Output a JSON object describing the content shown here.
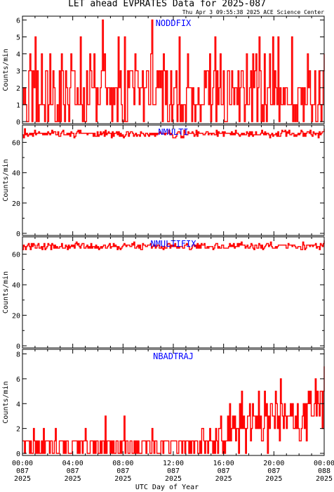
{
  "header": {
    "title": "LET ahead EVPRATES Data for 2025-087",
    "timestamp": "Thu Apr  3 09:55:38 2025 ACE Science Center"
  },
  "colors": {
    "series": "#ff0000",
    "panel_label": "#0000ff",
    "axis": "#000000"
  },
  "x_axis": {
    "label": "UTC Day of Year",
    "ticks": [
      {
        "time": "00:00",
        "doy": "087",
        "year": "2025"
      },
      {
        "time": "04:00",
        "doy": "087",
        "year": "2025"
      },
      {
        "time": "08:00",
        "doy": "087",
        "year": "2025"
      },
      {
        "time": "12:00",
        "doy": "087",
        "year": "2025"
      },
      {
        "time": "16:00",
        "doy": "087",
        "year": "2025"
      },
      {
        "time": "20:00",
        "doy": "087",
        "year": "2025"
      },
      {
        "time": "00:00",
        "doy": "088",
        "year": "2025"
      }
    ]
  },
  "chart_data": [
    {
      "type": "line",
      "label": "NODDFIX",
      "ylabel": "Counts/min",
      "ylim": [
        0,
        6.1
      ],
      "yticks": [
        0,
        1,
        2,
        3,
        4,
        5,
        6
      ],
      "x": {
        "start_hour": 0,
        "end_hour": 24,
        "step_min": 5
      },
      "values": [
        2,
        1,
        2,
        1,
        0,
        0,
        3,
        4,
        3,
        0,
        3,
        2,
        5,
        0,
        3,
        0,
        1,
        1,
        4,
        1,
        1,
        0,
        3,
        3,
        0,
        1,
        4,
        1,
        1,
        3,
        2,
        0,
        0,
        1,
        0,
        3,
        0,
        4,
        3,
        1,
        0,
        3,
        2,
        1,
        0,
        2,
        4,
        3,
        3,
        3,
        1,
        1,
        2,
        1,
        1,
        5,
        1,
        0,
        2,
        0,
        0,
        3,
        1,
        1,
        4,
        3,
        2,
        2,
        4,
        2,
        0,
        2,
        1,
        1,
        2,
        3,
        6,
        3,
        4,
        2,
        1,
        2,
        2,
        1,
        2,
        0,
        2,
        1,
        2,
        2,
        0,
        5,
        2,
        3,
        1,
        0,
        0,
        5,
        0,
        0,
        3,
        2,
        3,
        3,
        3,
        2,
        1,
        4,
        3,
        3,
        2,
        1,
        2,
        2,
        3,
        0,
        2,
        2,
        3,
        3,
        1,
        1,
        4,
        6,
        1,
        1,
        1,
        2,
        3,
        2,
        3,
        2,
        3,
        0,
        4,
        3,
        1,
        3,
        0,
        0,
        1,
        3,
        0,
        1,
        2,
        2,
        3,
        0,
        1,
        5,
        0,
        1,
        0,
        1,
        1,
        0,
        2,
        4,
        2,
        2,
        2,
        0,
        2,
        1,
        0,
        1,
        1,
        2,
        1,
        0,
        1,
        1,
        1,
        3,
        2,
        3,
        3,
        1,
        4,
        0,
        1,
        2,
        3,
        5,
        0,
        3,
        1,
        2,
        4,
        1,
        1,
        3,
        0,
        0,
        0,
        3,
        3,
        1,
        1,
        3,
        2,
        1,
        2,
        2,
        1,
        3,
        0,
        2,
        3,
        3,
        2,
        0,
        1,
        4,
        1,
        1,
        2,
        3,
        0,
        4,
        2,
        3,
        4,
        0,
        2,
        5,
        3,
        0,
        1,
        0,
        4,
        1,
        0,
        2,
        2,
        4,
        1,
        1,
        5,
        1,
        3,
        2,
        1,
        5,
        0,
        2,
        1,
        1,
        2,
        1,
        2,
        2,
        1,
        1,
        1,
        1,
        5,
        0,
        1,
        0,
        1,
        0,
        2,
        2,
        2,
        1,
        2,
        0,
        2,
        1,
        1,
        4,
        2,
        3,
        1,
        0,
        1,
        1,
        3,
        0,
        0,
        1,
        3,
        1,
        0,
        1,
        3,
        4
      ]
    },
    {
      "type": "line",
      "label": "NMULTI",
      "ylabel": "Counts/min",
      "ylim": [
        0,
        70
      ],
      "yticks": [
        0,
        20,
        40,
        60
      ],
      "x": {
        "start_hour": 0,
        "end_hour": 24,
        "step_min": 5
      },
      "values": [
        65,
        63,
        69,
        65,
        66,
        64,
        65,
        66,
        65,
        66,
        64,
        66,
        68,
        65,
        66,
        66,
        67,
        66,
        66,
        66,
        65,
        66,
        65,
        66,
        65,
        67,
        66,
        65,
        66,
        68,
        66,
        67,
        67,
        65,
        65,
        67,
        64,
        64,
        66,
        67,
        68,
        65,
        65,
        65,
        66,
        65,
        66,
        64,
        67,
        66,
        66,
        63,
        64,
        66,
        67,
        68,
        66,
        68,
        66,
        66,
        66,
        66,
        66,
        66,
        65,
        66,
        66,
        66,
        66,
        66,
        64,
        66,
        64,
        64,
        67,
        64,
        65,
        67,
        65,
        66,
        67,
        64,
        68,
        65,
        66,
        67,
        66,
        66,
        63,
        67,
        64,
        66,
        66,
        67,
        65,
        67,
        64,
        66,
        64,
        65,
        63,
        64,
        65,
        67,
        67,
        64,
        66,
        67,
        67,
        66,
        64,
        65,
        66,
        64,
        65,
        65,
        64,
        67,
        66,
        66,
        65,
        64,
        66,
        66,
        65,
        64,
        66,
        65,
        66,
        65,
        66,
        64,
        66,
        65,
        66,
        66,
        67,
        66,
        66,
        66,
        66,
        65,
        66,
        66,
        66,
        68,
        65,
        66,
        65,
        63,
        63,
        63,
        64,
        66,
        67,
        67,
        66,
        63,
        64,
        63,
        68,
        66,
        65,
        65,
        67,
        66,
        66,
        66,
        67,
        66,
        64,
        65,
        68,
        64,
        67,
        66,
        66,
        66,
        66,
        65,
        65,
        66,
        67,
        67,
        65,
        66,
        66,
        65,
        66,
        66,
        65,
        65,
        68,
        64,
        67,
        66,
        66,
        66,
        67,
        64,
        67,
        66,
        66,
        66,
        66,
        66,
        65,
        67,
        65,
        66,
        65,
        68,
        66,
        66,
        65,
        64,
        65,
        66,
        65,
        66,
        65,
        65,
        67,
        66,
        64,
        67,
        65,
        67,
        64,
        65,
        65,
        67,
        65,
        65,
        65,
        65,
        66,
        68,
        66,
        65,
        67,
        65,
        66,
        66,
        65,
        63,
        65,
        66,
        64,
        65,
        65,
        66,
        64,
        67,
        64,
        64,
        66,
        68,
        67,
        67,
        68,
        64,
        67,
        66,
        68,
        65,
        65,
        66,
        66,
        64,
        65,
        64,
        65,
        66,
        65,
        66,
        68,
        67,
        64,
        66,
        64,
        66,
        67,
        67,
        66,
        68,
        65,
        64,
        67,
        66,
        65,
        66,
        66,
        63,
        67,
        65,
        66,
        67,
        67,
        69
      ]
    },
    {
      "type": "line",
      "label": "NMULTIFIX",
      "ylabel": "Counts/min",
      "ylim": [
        0,
        70
      ],
      "yticks": [
        0,
        20,
        40,
        60
      ],
      "x": {
        "start_hour": 0,
        "end_hour": 24,
        "step_min": 5
      },
      "values": [
        63,
        66,
        65,
        63,
        65,
        66,
        67,
        65,
        63,
        67,
        65,
        67,
        66,
        64,
        64,
        66,
        67,
        64,
        64,
        65,
        63,
        65,
        67,
        63,
        64,
        65,
        67,
        66,
        66,
        63,
        67,
        66,
        64,
        66,
        64,
        65,
        64,
        64,
        65,
        65,
        67,
        64,
        64,
        64,
        66,
        65,
        63,
        66,
        64,
        65,
        66,
        65,
        66,
        64,
        67,
        68,
        66,
        67,
        65,
        64,
        66,
        67,
        67,
        64,
        64,
        65,
        66,
        64,
        65,
        64,
        67,
        64,
        65,
        65,
        64,
        66,
        64,
        65,
        63,
        64,
        65,
        64,
        65,
        66,
        66,
        64,
        64,
        65,
        66,
        67,
        64,
        65,
        65,
        67,
        65,
        66,
        65,
        63,
        65,
        64,
        63,
        64,
        65,
        66,
        67,
        66,
        65,
        66,
        66,
        66,
        65,
        65,
        67,
        66,
        68,
        64,
        64,
        65,
        66,
        64,
        66,
        63,
        63,
        67,
        66,
        66,
        65,
        65,
        66,
        66,
        66,
        67,
        64,
        65,
        66,
        66,
        64,
        65,
        66,
        66,
        64,
        64,
        65,
        64,
        63,
        65,
        64,
        64,
        66,
        67,
        67,
        64,
        66,
        65,
        66,
        65,
        67,
        65,
        64,
        65,
        64,
        65,
        65,
        65,
        64,
        64,
        66,
        66,
        67,
        66,
        65,
        63,
        63,
        64,
        66,
        66,
        65,
        66,
        64,
        67,
        64,
        66,
        64,
        67,
        66,
        66,
        67,
        64,
        64,
        65,
        64,
        65,
        65,
        65,
        65,
        63,
        64,
        66,
        67,
        67,
        64,
        65,
        64,
        64,
        66,
        66,
        64,
        64,
        64,
        64,
        64,
        65,
        67,
        65,
        66,
        65,
        67,
        64,
        65,
        65,
        67,
        65,
        67,
        66,
        68,
        66,
        66,
        66,
        64,
        65,
        66,
        64,
        64,
        65,
        67,
        66,
        64,
        63,
        66,
        66,
        64,
        64,
        67,
        66,
        64,
        66,
        63,
        64,
        65,
        66,
        67,
        67,
        65,
        66,
        68,
        65,
        64,
        64,
        64,
        65,
        64,
        65,
        66,
        66,
        66,
        66,
        66,
        66,
        66,
        66,
        64,
        64,
        67,
        66,
        66,
        66,
        65,
        66,
        66,
        65,
        64,
        64,
        65,
        65,
        65,
        63,
        63,
        68,
        66,
        63,
        64,
        66,
        66,
        66,
        65,
        66,
        66,
        65,
        66,
        66,
        67,
        64,
        65,
        65,
        63,
        67,
        66,
        65,
        67,
        69
      ]
    },
    {
      "type": "line",
      "label": "NBADTRAJ",
      "ylabel": "Counts/min",
      "ylim": [
        0,
        8.2
      ],
      "yticks": [
        0,
        2,
        4,
        6,
        8
      ],
      "x": {
        "start_hour": 0,
        "end_hour": 24,
        "step_min": 5
      },
      "values": [
        1,
        1,
        0,
        1,
        1,
        1,
        1,
        0,
        1,
        0,
        0,
        2,
        1,
        0,
        1,
        0,
        1,
        0,
        0,
        1,
        0,
        2,
        0,
        1,
        1,
        1,
        1,
        0,
        1,
        1,
        0,
        0,
        1,
        2,
        0,
        0,
        0,
        1,
        1,
        1,
        1,
        0,
        1,
        0,
        1,
        1,
        0,
        0,
        0,
        0,
        1,
        1,
        1,
        1,
        1,
        0,
        1,
        0,
        1,
        1,
        0,
        1,
        1,
        2,
        1,
        0,
        0,
        0,
        1,
        1,
        1,
        0,
        1,
        0,
        1,
        1,
        0,
        0,
        1,
        0,
        1,
        1,
        0,
        3,
        0,
        1,
        1,
        1,
        0,
        1,
        0,
        1,
        0,
        0,
        1,
        1,
        0,
        0,
        1,
        0,
        1,
        1,
        3,
        0,
        1,
        1,
        0,
        0,
        1,
        1,
        0,
        0,
        1,
        0,
        1,
        0,
        1,
        0,
        0,
        0,
        1,
        1,
        1,
        1,
        0,
        1,
        1,
        1,
        0,
        0,
        2,
        1,
        0,
        1,
        1,
        0,
        0,
        0,
        0,
        1,
        1,
        0,
        1,
        1,
        1,
        1,
        1,
        0,
        0,
        1,
        1,
        1,
        1,
        1,
        1,
        0,
        0,
        1,
        1,
        1,
        0,
        1,
        1,
        0,
        1,
        1,
        1,
        0,
        1,
        0,
        1,
        1,
        0,
        1,
        1,
        1,
        0,
        0,
        1,
        0,
        2,
        2,
        1,
        0,
        1,
        1,
        0,
        1,
        2,
        1,
        1,
        0,
        1,
        0,
        2,
        1,
        0,
        2,
        2,
        3,
        1,
        0,
        1,
        0,
        1,
        1,
        3,
        1,
        4,
        1,
        2,
        3,
        2,
        3,
        1,
        2,
        2,
        0,
        4,
        2,
        5,
        2,
        3,
        2,
        0,
        2,
        3,
        3,
        4,
        1,
        2,
        4,
        3,
        3,
        2,
        3,
        2,
        5,
        2,
        3,
        1,
        1,
        2,
        5,
        3,
        4,
        0,
        3,
        2,
        4,
        4,
        3,
        3,
        2,
        5,
        4,
        2,
        3,
        1,
        6,
        4,
        3,
        2,
        4,
        3,
        2,
        3,
        3,
        3,
        4,
        3,
        4,
        2,
        2,
        3,
        2,
        4,
        2,
        1,
        1,
        2,
        3,
        4,
        2,
        4,
        1,
        4,
        5,
        4,
        5,
        3,
        3,
        3,
        4,
        6,
        3,
        5,
        4,
        3,
        5,
        5,
        2,
        5,
        7
      ]
    }
  ]
}
